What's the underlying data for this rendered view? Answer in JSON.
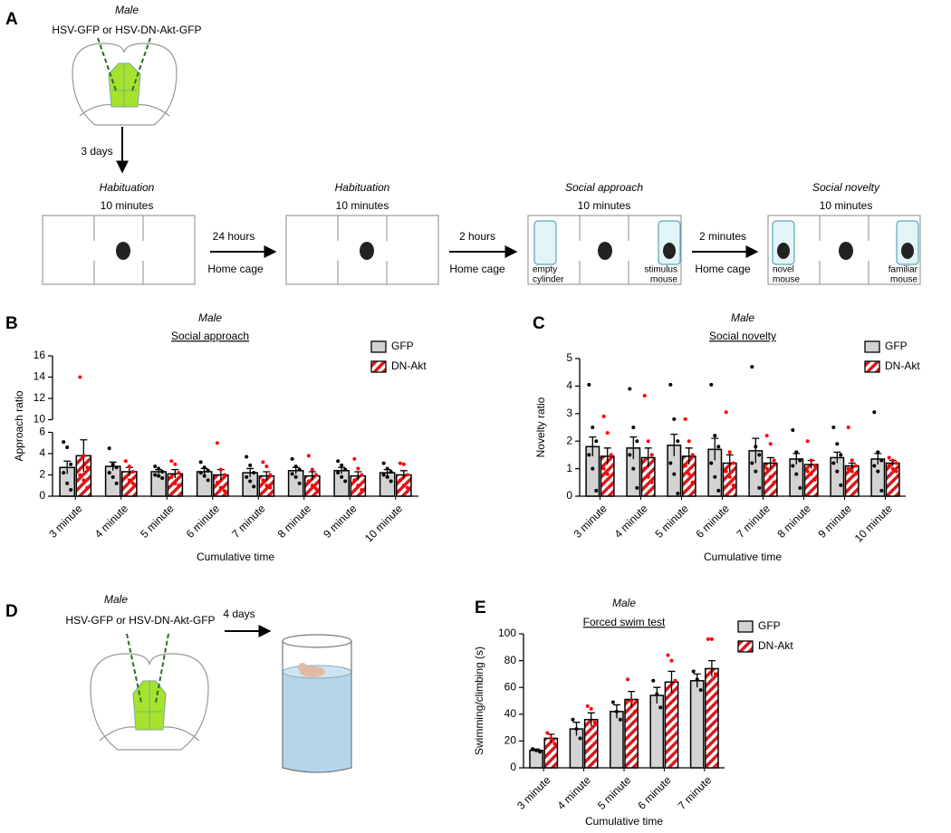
{
  "panel_labels": [
    "A",
    "B",
    "C",
    "D",
    "E"
  ],
  "diagram_a": {
    "sex": "Male",
    "virus": "HSV-GFP or HSV-DN-Akt-GFP",
    "delay": "3 days",
    "stages": [
      {
        "title": "Habituation",
        "duration": "10 minutes"
      },
      {
        "title": "Habituation",
        "duration": "10 minutes"
      },
      {
        "title": "Social approach",
        "duration": "10 minutes"
      },
      {
        "title": "Social novelty",
        "duration": "10 minutes"
      }
    ],
    "transitions": [
      {
        "interval": "24 hours",
        "place": "Home cage"
      },
      {
        "interval": "2 hours",
        "place": "Home cage"
      },
      {
        "interval": "2 minutes",
        "place": "Home cage"
      }
    ],
    "arena_labels": {
      "empty_cylinder": [
        "empty",
        "cylinder"
      ],
      "stimulus_mouse": [
        "stimulus",
        "mouse"
      ],
      "novel_mouse": [
        "novel",
        "mouse"
      ],
      "familiar_mouse": [
        "familiar",
        "mouse"
      ]
    }
  },
  "diagram_d": {
    "sex": "Male",
    "virus": "HSV-GFP or HSV-DN-Akt-GFP",
    "delay": "4 days"
  },
  "chart_data": [
    {
      "type": "bar",
      "title": "Male",
      "subtitle": "Social approach",
      "ylabel": "Approach ratio",
      "xlabel": "Cumulative time",
      "legend": "top-right",
      "categories": [
        "3 minute",
        "4 minute",
        "5 minute",
        "6 minute",
        "7 minute",
        "8 minute",
        "9 minute",
        "10 minute"
      ],
      "ylim": [
        0,
        16
      ],
      "ybreak": [
        6,
        10
      ],
      "yticks": [
        0,
        2,
        4,
        6,
        10,
        12,
        14,
        16
      ],
      "series": [
        {
          "name": "GFP",
          "color": "#d3d3d3",
          "hatch": false,
          "point_color": "#000000",
          "values": [
            2.7,
            2.8,
            2.3,
            2.3,
            2.2,
            2.4,
            2.4,
            2.2
          ],
          "errors": [
            0.6,
            0.4,
            0.2,
            0.3,
            0.4,
            0.3,
            0.3,
            0.3
          ],
          "points": [
            [
              5.1,
              4.6,
              3.0,
              2.2,
              1.2,
              0.6
            ],
            [
              4.5,
              3.0,
              2.7,
              2.2,
              1.8,
              1.2
            ],
            [
              2.8,
              2.6,
              2.3,
              2.0,
              1.9,
              1.7
            ],
            [
              3.2,
              2.7,
              2.4,
              2.2,
              1.9,
              1.5
            ],
            [
              3.7,
              2.9,
              2.2,
              1.8,
              1.4,
              0.9
            ],
            [
              3.5,
              2.8,
              2.5,
              2.1,
              1.8,
              1.2
            ],
            [
              3.3,
              2.9,
              2.5,
              2.2,
              1.8,
              1.4
            ],
            [
              3.1,
              2.6,
              2.3,
              2.0,
              1.8,
              1.4
            ]
          ]
        },
        {
          "name": "DN-Akt",
          "color": "#d7191c",
          "hatch": true,
          "point_color": "#ff0000",
          "values": [
            3.8,
            2.3,
            2.1,
            2.0,
            1.9,
            1.9,
            1.9,
            2.0
          ],
          "errors": [
            1.5,
            0.4,
            0.4,
            0.5,
            0.4,
            0.4,
            0.4,
            0.4
          ],
          "points": [
            [
              14.0,
              3.8,
              2.7,
              2.0,
              1.5,
              0.8
            ],
            [
              3.3,
              2.8,
              2.3,
              1.8,
              1.5,
              1.2
            ],
            [
              3.3,
              3.0,
              2.2,
              1.8,
              1.2,
              1.0
            ],
            [
              5.0,
              2.5,
              2.0,
              1.3,
              0.8,
              0.5
            ],
            [
              3.2,
              2.8,
              2.0,
              1.5,
              1.0,
              0.8
            ],
            [
              3.8,
              2.5,
              2.0,
              1.4,
              1.0,
              0.7
            ],
            [
              3.5,
              2.6,
              2.0,
              1.5,
              1.0,
              0.6
            ],
            [
              3.1,
              3.0,
              2.0,
              1.5,
              1.0,
              0.8
            ]
          ]
        }
      ]
    },
    {
      "type": "bar",
      "title": "Male",
      "subtitle": "Social novelty",
      "ylabel": "Novelty ratio",
      "xlabel": "Cumulative time",
      "legend": "top-right",
      "categories": [
        "3 minute",
        "4 minute",
        "5 minute",
        "6 minute",
        "7 minute",
        "8 minute",
        "9 minute",
        "10 minute"
      ],
      "ylim": [
        0,
        5
      ],
      "yticks": [
        0,
        1,
        2,
        3,
        4,
        5
      ],
      "series": [
        {
          "name": "GFP",
          "color": "#d3d3d3",
          "hatch": false,
          "point_color": "#000000",
          "values": [
            1.8,
            1.75,
            1.85,
            1.7,
            1.65,
            1.35,
            1.4,
            1.35
          ],
          "errors": [
            0.35,
            0.4,
            0.4,
            0.4,
            0.45,
            0.2,
            0.2,
            0.2
          ],
          "points": [
            [
              4.05,
              2.5,
              2.0,
              1.5,
              1.0,
              0.2
            ],
            [
              3.9,
              2.5,
              2.0,
              1.5,
              1.0,
              0.3
            ],
            [
              4.05,
              2.8,
              2.0,
              1.2,
              0.8,
              0.1
            ],
            [
              4.05,
              2.2,
              1.8,
              1.2,
              0.7,
              0.2
            ],
            [
              4.7,
              1.8,
              1.5,
              1.2,
              0.9,
              0.3
            ],
            [
              2.4,
              1.6,
              1.3,
              1.1,
              0.8,
              0.3
            ],
            [
              2.5,
              1.9,
              1.5,
              1.2,
              0.9,
              0.4
            ],
            [
              3.05,
              1.6,
              1.3,
              1.1,
              0.9,
              0.2
            ]
          ]
        },
        {
          "name": "DN-Akt",
          "color": "#d7191c",
          "hatch": true,
          "point_color": "#ff0000",
          "values": [
            1.45,
            1.4,
            1.45,
            1.2,
            1.2,
            1.15,
            1.1,
            1.2
          ],
          "errors": [
            0.3,
            0.35,
            0.3,
            0.3,
            0.2,
            0.15,
            0.1,
            0.1
          ],
          "points": [
            [
              2.9,
              2.3,
              1.5,
              1.0,
              0.8,
              0.4
            ],
            [
              3.65,
              2.0,
              1.5,
              1.0,
              0.7,
              0.5
            ],
            [
              2.8,
              2.0,
              1.5,
              1.1,
              0.8,
              0.5
            ],
            [
              3.05,
              1.6,
              1.2,
              0.9,
              0.7,
              0.4
            ],
            [
              2.2,
              1.9,
              1.3,
              1.0,
              0.7,
              0.5
            ],
            [
              2.0,
              1.3,
              1.1,
              0.9,
              0.8,
              0.6
            ],
            [
              2.5,
              1.3,
              1.1,
              1.0,
              0.9,
              0.8
            ],
            [
              1.4,
              1.3,
              1.2,
              1.1,
              1.0,
              0.9
            ]
          ]
        }
      ]
    },
    {
      "type": "bar",
      "title": "Male",
      "subtitle": "Forced swim test",
      "ylabel": "Swimming/climbing (s)",
      "xlabel": "Cumulative time",
      "legend": "top-right",
      "categories": [
        "3 minute",
        "4 minute",
        "5 minute",
        "6 minute",
        "7 minute"
      ],
      "ylim": [
        0,
        100
      ],
      "yticks": [
        0,
        20,
        40,
        60,
        80,
        100
      ],
      "series": [
        {
          "name": "GFP",
          "color": "#d3d3d3",
          "hatch": false,
          "point_color": "#000000",
          "values": [
            13,
            29,
            42,
            54,
            65
          ],
          "errors": [
            1,
            5,
            5,
            6,
            5
          ],
          "points": [
            [
              14,
              13,
              12
            ],
            [
              36,
              29,
              22
            ],
            [
              49,
              42,
              36
            ],
            [
              65,
              55,
              45
            ],
            [
              72,
              66,
              58
            ]
          ]
        },
        {
          "name": "DN-Akt",
          "color": "#d7191c",
          "hatch": true,
          "point_color": "#ff0000",
          "values": [
            22,
            36,
            51,
            64,
            74
          ],
          "errors": [
            3,
            5,
            6,
            8,
            6
          ],
          "points": [
            [
              26,
              22,
              18
            ],
            [
              46,
              44,
              34
            ],
            [
              66,
              50,
              42
            ],
            [
              84,
              80,
              65
            ],
            [
              96,
              96,
              70
            ]
          ]
        }
      ]
    }
  ]
}
